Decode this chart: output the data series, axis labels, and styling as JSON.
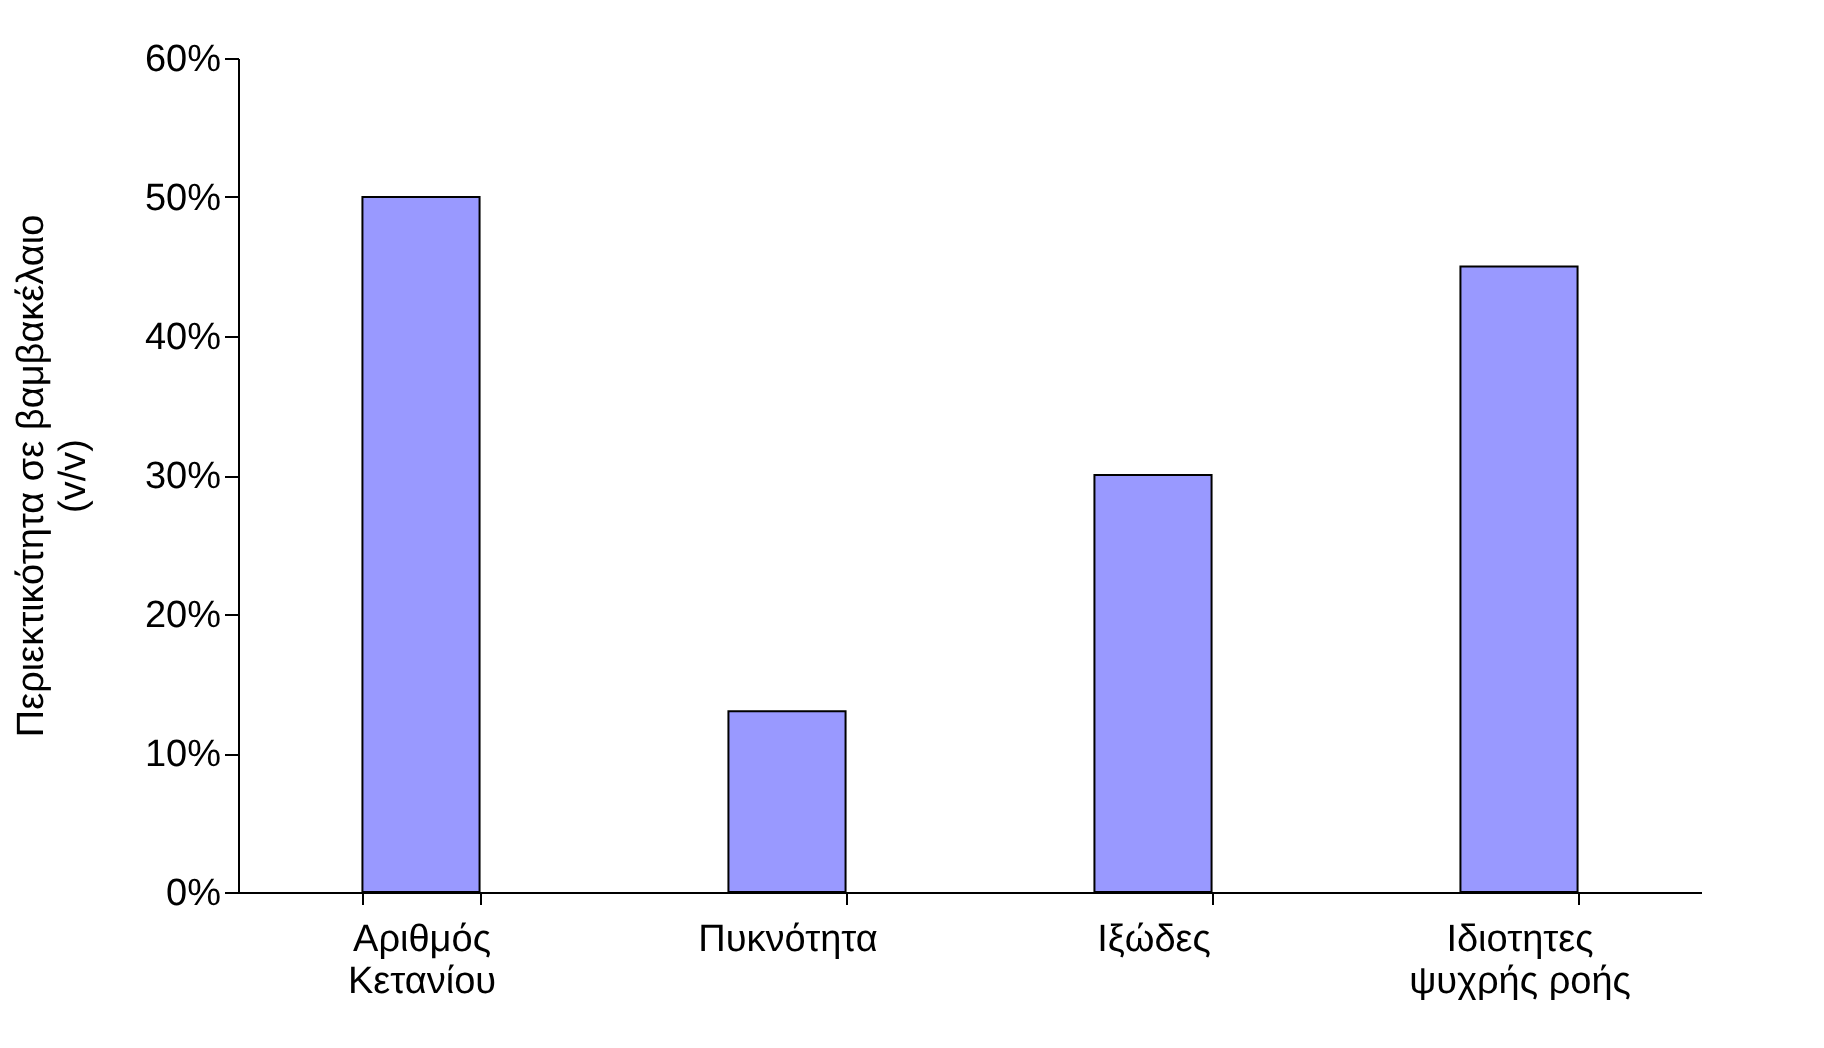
{
  "chart_data": {
    "type": "bar",
    "ylabel": "Περιεκτικότητα σε βαμβακέλαιο (v/v)",
    "categories": [
      "Αριθμός Κετανίου",
      "Πυκνότητα",
      "Ιξώδες",
      "Ιδιοτητες ψυχρής ροής"
    ],
    "values": [
      50,
      13,
      30,
      45
    ],
    "color": "#9999ff",
    "ylim": [
      0,
      60
    ],
    "yticks": [
      {
        "value": 0,
        "label": "0%"
      },
      {
        "value": 10,
        "label": "10%"
      },
      {
        "value": 20,
        "label": "20%"
      },
      {
        "value": 30,
        "label": "30%"
      },
      {
        "value": 40,
        "label": "40%"
      },
      {
        "value": 50,
        "label": "50%"
      },
      {
        "value": 60,
        "label": "60%"
      }
    ],
    "grid": false
  }
}
